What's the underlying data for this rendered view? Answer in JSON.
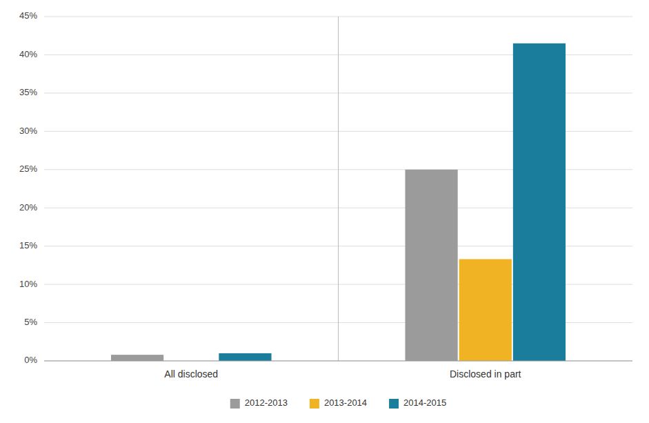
{
  "chart_data": {
    "type": "bar",
    "categories": [
      "All disclosed",
      "Disclosed in part"
    ],
    "series": [
      {
        "name": "2012-2013",
        "color": "#9b9b9b",
        "values": [
          0.8,
          25.0
        ]
      },
      {
        "name": "2013-2014",
        "color": "#f0b323",
        "values": [
          0.0,
          13.3
        ]
      },
      {
        "name": "2014-2015",
        "color": "#1a7d9b",
        "values": [
          1.0,
          41.5
        ]
      }
    ],
    "ylim": [
      0,
      45
    ],
    "yticks": [
      {
        "value": 0,
        "label": "0%"
      },
      {
        "value": 5,
        "label": "5%"
      },
      {
        "value": 10,
        "label": "10%"
      },
      {
        "value": 15,
        "label": "15%"
      },
      {
        "value": 20,
        "label": "20%"
      },
      {
        "value": 25,
        "label": "25%"
      },
      {
        "value": 30,
        "label": "30%"
      },
      {
        "value": 35,
        "label": "35%"
      },
      {
        "value": 40,
        "label": "40%"
      },
      {
        "value": 45,
        "label": "45%"
      }
    ],
    "grid": true,
    "legend": "bottom"
  }
}
